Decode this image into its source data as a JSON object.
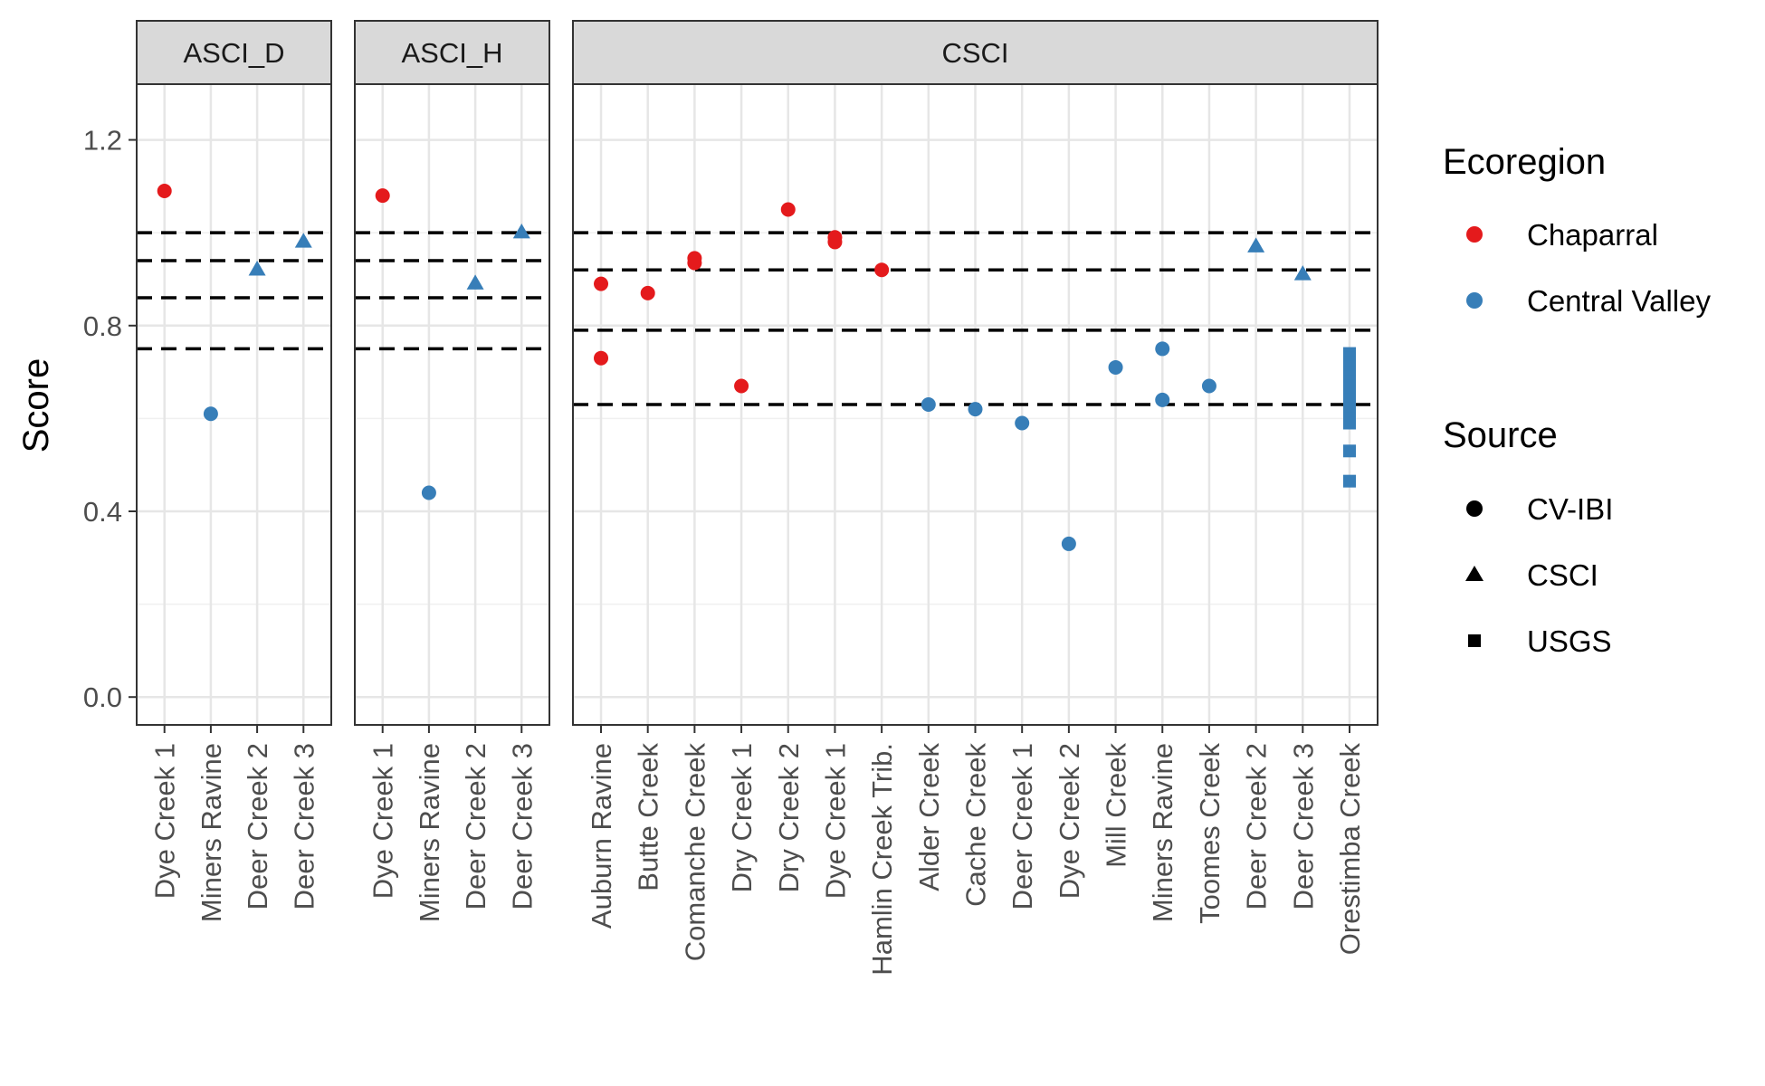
{
  "chart_data": {
    "type": "scatter",
    "ylabel": "Score",
    "xlabel": "",
    "title": "",
    "ylim": [
      -0.06,
      1.32
    ],
    "y_ticks": [
      0.0,
      0.4,
      0.8,
      1.2
    ],
    "y_tick_labels": [
      "0.0",
      "0.4",
      "0.8",
      "1.2"
    ],
    "grid": true,
    "legend_position": "right",
    "colors": {
      "Chaparral": "#e41a1c",
      "Central Valley": "#377eb8"
    },
    "legends": [
      {
        "title": "Ecoregion",
        "entries": [
          {
            "label": "Chaparral",
            "shape": "circle",
            "color": "#e41a1c"
          },
          {
            "label": "Central Valley",
            "shape": "circle",
            "color": "#377eb8"
          }
        ]
      },
      {
        "title": "Source",
        "entries": [
          {
            "label": "CV-IBI",
            "shape": "circle",
            "color": "#000000"
          },
          {
            "label": "CSCI",
            "shape": "triangle",
            "color": "#000000"
          },
          {
            "label": "USGS",
            "shape": "square",
            "color": "#000000"
          }
        ]
      }
    ],
    "shape_map": {
      "CV-IBI": "circle",
      "CSCI": "triangle",
      "USGS": "square"
    },
    "facets": [
      {
        "name": "ASCI_D",
        "categories": [
          "Dye Creek 1",
          "Miners Ravine",
          "Deer Creek 2",
          "Deer Creek 3"
        ],
        "thresholds": [
          1.0,
          0.94,
          0.86,
          0.75
        ],
        "points": [
          {
            "x": "Dye Creek 1",
            "y": 1.09,
            "ecoregion": "Chaparral",
            "source": "CV-IBI"
          },
          {
            "x": "Miners Ravine",
            "y": 0.61,
            "ecoregion": "Central Valley",
            "source": "CV-IBI"
          },
          {
            "x": "Deer Creek 2",
            "y": 0.92,
            "ecoregion": "Central Valley",
            "source": "CSCI"
          },
          {
            "x": "Deer Creek 3",
            "y": 0.98,
            "ecoregion": "Central Valley",
            "source": "CSCI"
          }
        ]
      },
      {
        "name": "ASCI_H",
        "categories": [
          "Dye Creek 1",
          "Miners Ravine",
          "Deer Creek 2",
          "Deer Creek 3"
        ],
        "thresholds": [
          1.0,
          0.94,
          0.86,
          0.75
        ],
        "points": [
          {
            "x": "Dye Creek 1",
            "y": 1.08,
            "ecoregion": "Chaparral",
            "source": "CV-IBI"
          },
          {
            "x": "Miners Ravine",
            "y": 0.44,
            "ecoregion": "Central Valley",
            "source": "CV-IBI"
          },
          {
            "x": "Deer Creek 2",
            "y": 0.89,
            "ecoregion": "Central Valley",
            "source": "CSCI"
          },
          {
            "x": "Deer Creek 3",
            "y": 1.0,
            "ecoregion": "Central Valley",
            "source": "CSCI"
          }
        ]
      },
      {
        "name": "CSCI",
        "categories": [
          "Auburn Ravine",
          "Butte Creek",
          "Comanche Creek",
          "Dry Creek 1",
          "Dry Creek 2",
          "Dye Creek 1",
          "Hamlin Creek Trib.",
          "Alder Creek",
          "Cache Creek",
          "Deer Creek 1",
          "Dye Creek 2",
          "Mill Creek",
          "Miners Ravine",
          "Toomes Creek",
          "Deer Creek 2",
          "Deer Creek 3",
          "Orestimba Creek"
        ],
        "thresholds": [
          1.0,
          0.92,
          0.79,
          0.63
        ],
        "points": [
          {
            "x": "Auburn Ravine",
            "y": 0.89,
            "ecoregion": "Chaparral",
            "source": "CV-IBI"
          },
          {
            "x": "Auburn Ravine",
            "y": 0.73,
            "ecoregion": "Chaparral",
            "source": "CV-IBI"
          },
          {
            "x": "Butte Creek",
            "y": 0.87,
            "ecoregion": "Chaparral",
            "source": "CV-IBI"
          },
          {
            "x": "Comanche Creek",
            "y": 0.945,
            "ecoregion": "Chaparral",
            "source": "CV-IBI"
          },
          {
            "x": "Comanche Creek",
            "y": 0.935,
            "ecoregion": "Chaparral",
            "source": "CV-IBI"
          },
          {
            "x": "Dry Creek 1",
            "y": 0.67,
            "ecoregion": "Chaparral",
            "source": "CV-IBI"
          },
          {
            "x": "Dry Creek 2",
            "y": 1.05,
            "ecoregion": "Chaparral",
            "source": "CV-IBI"
          },
          {
            "x": "Dye Creek 1",
            "y": 0.99,
            "ecoregion": "Chaparral",
            "source": "CV-IBI"
          },
          {
            "x": "Dye Creek 1",
            "y": 0.98,
            "ecoregion": "Chaparral",
            "source": "CV-IBI"
          },
          {
            "x": "Hamlin Creek Trib.",
            "y": 0.92,
            "ecoregion": "Chaparral",
            "source": "CV-IBI"
          },
          {
            "x": "Alder Creek",
            "y": 0.63,
            "ecoregion": "Central Valley",
            "source": "CV-IBI"
          },
          {
            "x": "Cache Creek",
            "y": 0.62,
            "ecoregion": "Central Valley",
            "source": "CV-IBI"
          },
          {
            "x": "Deer Creek 1",
            "y": 0.59,
            "ecoregion": "Central Valley",
            "source": "CV-IBI"
          },
          {
            "x": "Dye Creek 2",
            "y": 0.33,
            "ecoregion": "Central Valley",
            "source": "CV-IBI"
          },
          {
            "x": "Mill Creek",
            "y": 0.71,
            "ecoregion": "Central Valley",
            "source": "CV-IBI"
          },
          {
            "x": "Miners Ravine",
            "y": 0.75,
            "ecoregion": "Central Valley",
            "source": "CV-IBI"
          },
          {
            "x": "Miners Ravine",
            "y": 0.64,
            "ecoregion": "Central Valley",
            "source": "CV-IBI"
          },
          {
            "x": "Toomes Creek",
            "y": 0.67,
            "ecoregion": "Central Valley",
            "source": "CV-IBI"
          },
          {
            "x": "Deer Creek 2",
            "y": 0.97,
            "ecoregion": "Central Valley",
            "source": "CSCI"
          },
          {
            "x": "Deer Creek 3",
            "y": 0.91,
            "ecoregion": "Central Valley",
            "source": "CSCI"
          },
          {
            "x": "Orestimba Creek",
            "y": 0.74,
            "ecoregion": "Central Valley",
            "source": "USGS"
          },
          {
            "x": "Orestimba Creek",
            "y": 0.73,
            "ecoregion": "Central Valley",
            "source": "USGS"
          },
          {
            "x": "Orestimba Creek",
            "y": 0.72,
            "ecoregion": "Central Valley",
            "source": "USGS"
          },
          {
            "x": "Orestimba Creek",
            "y": 0.71,
            "ecoregion": "Central Valley",
            "source": "USGS"
          },
          {
            "x": "Orestimba Creek",
            "y": 0.7,
            "ecoregion": "Central Valley",
            "source": "USGS"
          },
          {
            "x": "Orestimba Creek",
            "y": 0.69,
            "ecoregion": "Central Valley",
            "source": "USGS"
          },
          {
            "x": "Orestimba Creek",
            "y": 0.68,
            "ecoregion": "Central Valley",
            "source": "USGS"
          },
          {
            "x": "Orestimba Creek",
            "y": 0.67,
            "ecoregion": "Central Valley",
            "source": "USGS"
          },
          {
            "x": "Orestimba Creek",
            "y": 0.66,
            "ecoregion": "Central Valley",
            "source": "USGS"
          },
          {
            "x": "Orestimba Creek",
            "y": 0.65,
            "ecoregion": "Central Valley",
            "source": "USGS"
          },
          {
            "x": "Orestimba Creek",
            "y": 0.64,
            "ecoregion": "Central Valley",
            "source": "USGS"
          },
          {
            "x": "Orestimba Creek",
            "y": 0.62,
            "ecoregion": "Central Valley",
            "source": "USGS"
          },
          {
            "x": "Orestimba Creek",
            "y": 0.6,
            "ecoregion": "Central Valley",
            "source": "USGS"
          },
          {
            "x": "Orestimba Creek",
            "y": 0.59,
            "ecoregion": "Central Valley",
            "source": "USGS"
          },
          {
            "x": "Orestimba Creek",
            "y": 0.53,
            "ecoregion": "Central Valley",
            "source": "USGS"
          },
          {
            "x": "Orestimba Creek",
            "y": 0.465,
            "ecoregion": "Central Valley",
            "source": "USGS"
          }
        ]
      }
    ]
  }
}
